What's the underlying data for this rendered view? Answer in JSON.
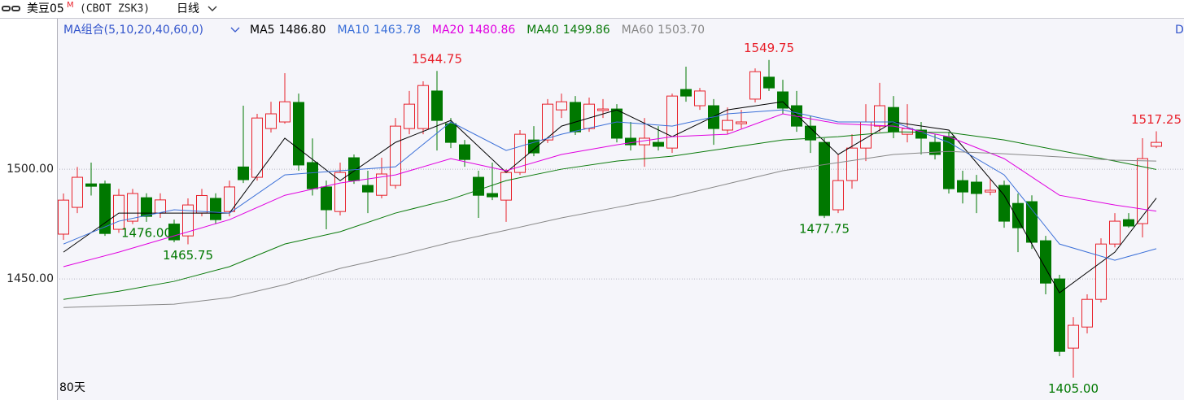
{
  "chart_data": {
    "type": "candlestick",
    "title": "美豆05",
    "title_badge": "M",
    "subtitle": "(CBOT ZSK3)",
    "period": "日线",
    "ma_group_label": "MA组合(5,10,20,40,60,0)",
    "span_label": "80天",
    "corner_label": "D",
    "up_color": "#e8212b",
    "down_color": "#007800",
    "ylim": [
      1395.6,
      1568.9
    ],
    "yticks": [
      {
        "value": 1450,
        "label": "1450.00"
      },
      {
        "value": 1500,
        "label": "1500.00"
      }
    ],
    "grid": true,
    "open": [
      1470.4,
      1482.6,
      1493.3,
      1493.3,
      1472.6,
      1476.3,
      1487,
      1480,
      1475,
      1469.6,
      1480,
      1486.7,
      1480.7,
      1501,
      1496.3,
      1518.5,
      1521.5,
      1530.4,
      1503,
      1491.9,
      1480.7,
      1505.2,
      1492.6,
      1488.1,
      1492.6,
      1518.5,
      1518.5,
      1535.6,
      1520.7,
      1511.1,
      1496.3,
      1488.9,
      1485.9,
      1498.5,
      1513.3,
      1513.3,
      1527,
      1530.4,
      1518.5,
      1526.7,
      1527.4,
      1514.1,
      1511.1,
      1512.2,
      1509.6,
      1536.3,
      1528.9,
      1528.9,
      1517.8,
      1520.7,
      1531.9,
      1541.9,
      1535.2,
      1528.9,
      1519.6,
      1512.2,
      1481.5,
      1494.8,
      1509.6,
      1519.6,
      1528.1,
      1515.9,
      1517.8,
      1512.2,
      1514.8,
      1494.8,
      1494.1,
      1489.6,
      1492.6,
      1484.4,
      1485.2,
      1467.4,
      1450,
      1418.5,
      1428.1,
      1440.7,
      1465.9,
      1477,
      1475.2,
      1510.4
    ],
    "high": [
      1488.9,
      1501,
      1503,
      1494.8,
      1491,
      1491,
      1489,
      1489,
      1477,
      1486.7,
      1491,
      1489,
      1494.8,
      1528.9,
      1525.2,
      1530.7,
      1543.7,
      1534.4,
      1514,
      1494.8,
      1503,
      1506.7,
      1499.3,
      1505.2,
      1523.3,
      1535.6,
      1540,
      1544.75,
      1523.3,
      1513.3,
      1499.3,
      1503,
      1500,
      1517.8,
      1519.6,
      1531.9,
      1534.4,
      1533.3,
      1532.6,
      1531.9,
      1529.6,
      1521.5,
      1523.3,
      1519.6,
      1534.4,
      1546.7,
      1537,
      1531.9,
      1528.1,
      1527,
      1545.9,
      1549.75,
      1540.7,
      1535.6,
      1524.4,
      1514.1,
      1506.7,
      1515.9,
      1529.6,
      1539.3,
      1533.3,
      1529.6,
      1521.5,
      1515.9,
      1517,
      1499.3,
      1497.4,
      1495.6,
      1494.8,
      1488.9,
      1488.1,
      1469.6,
      1451.9,
      1432.6,
      1443,
      1468.5,
      1480,
      1480,
      1514.1,
      1517.25
    ],
    "low": [
      1467.8,
      1480,
      1488,
      1469.6,
      1471,
      1475,
      1476,
      1477.8,
      1466.7,
      1465.75,
      1478.5,
      1475,
      1478.5,
      1493.7,
      1494.8,
      1516.7,
      1520.7,
      1499.3,
      1488,
      1472.6,
      1478.9,
      1493.3,
      1480,
      1486.7,
      1491.1,
      1515.9,
      1515.9,
      1508.5,
      1509.6,
      1501.1,
      1477.8,
      1485.9,
      1476,
      1497.4,
      1505.9,
      1511.9,
      1523.3,
      1515.6,
      1517,
      1523.3,
      1512.2,
      1508.5,
      1501.1,
      1508.5,
      1507.4,
      1530.7,
      1527,
      1511.1,
      1515.9,
      1518.5,
      1530.4,
      1535.6,
      1525.2,
      1517,
      1507.4,
      1477.75,
      1480,
      1491.1,
      1503.7,
      1517,
      1514.1,
      1512.2,
      1506.7,
      1504.4,
      1488.9,
      1484.4,
      1480,
      1488.1,
      1473.3,
      1462.2,
      1463.7,
      1443,
      1414.8,
      1405,
      1425.2,
      1439.3,
      1464.4,
      1473.3,
      1468.9,
      1509.6
    ],
    "close": [
      1485.9,
      1496.3,
      1492.2,
      1470.7,
      1488.1,
      1488.9,
      1478.5,
      1486,
      1467.8,
      1483.7,
      1488,
      1477,
      1491.9,
      1495.2,
      1523.3,
      1525.2,
      1530.7,
      1501.9,
      1491.1,
      1481.5,
      1498.5,
      1494.8,
      1489.6,
      1497.8,
      1519.6,
      1529.6,
      1538.1,
      1522.2,
      1512.2,
      1504.4,
      1488.1,
      1487.4,
      1498.5,
      1515.9,
      1507.4,
      1529.6,
      1530.7,
      1517,
      1529.6,
      1527.4,
      1514.1,
      1511.1,
      1514.1,
      1510.4,
      1533.3,
      1533.3,
      1535.6,
      1518.5,
      1522.2,
      1521.5,
      1544.4,
      1537,
      1527.8,
      1519.6,
      1513.3,
      1478.9,
      1494.8,
      1509.6,
      1521.5,
      1528.9,
      1517,
      1518.5,
      1514.1,
      1506.7,
      1491.1,
      1489.6,
      1488.9,
      1490.4,
      1476.3,
      1473.3,
      1466.7,
      1448.1,
      1417,
      1428.9,
      1440.7,
      1465.9,
      1476.3,
      1474.1,
      1504.8,
      1512.2
    ],
    "high_labels": [
      {
        "value": 1544.75,
        "label": "1544.75"
      },
      {
        "value": 1549.75,
        "label": "1549.75"
      },
      {
        "value": 1517.25,
        "label": "1517.25"
      }
    ],
    "low_labels": [
      {
        "value": 1465.75,
        "label": "1465.75"
      },
      {
        "value": 1476,
        "label": "1476.00"
      },
      {
        "value": 1477.75,
        "label": "1477.75"
      },
      {
        "value": 1405,
        "label": "1405.00"
      }
    ],
    "ma_x": [
      0,
      4,
      8,
      12,
      16,
      20,
      24,
      28,
      32,
      36,
      40,
      44,
      48,
      52,
      56,
      60,
      64,
      68,
      72,
      76,
      79
    ],
    "series": [
      {
        "name": "MA5",
        "color": "#000000",
        "latest": {
          "value": 1486.8,
          "label": "1486.80"
        },
        "values": [
          1462.2,
          1480,
          1480,
          1480,
          1514.1,
          1494.8,
          1512.2,
          1522.2,
          1498.5,
          1519.6,
          1527,
          1514.8,
          1527,
          1530.7,
          1506.7,
          1521.5,
          1517.8,
          1488.1,
          1443.7,
          1462.2,
          1486.8
        ]
      },
      {
        "name": "MA10",
        "color": "#3a6fd8",
        "latest": {
          "value": 1463.78,
          "label": "1463.78"
        },
        "values": [
          1465.9,
          1476.3,
          1481.5,
          1480,
          1497.4,
          1499.3,
          1501.1,
          1521.5,
          1508.5,
          1515.9,
          1521.5,
          1519.6,
          1525.2,
          1527,
          1521.5,
          1521.5,
          1512.2,
          1497.4,
          1465.9,
          1458.5,
          1463.78
        ]
      },
      {
        "name": "MA20",
        "color": "#e000e0",
        "latest": {
          "value": 1480.86,
          "label": "1480.86"
        },
        "values": [
          1455.6,
          1462.2,
          1469.6,
          1477,
          1488.1,
          1493.7,
          1497.4,
          1504.8,
          1499.3,
          1506.7,
          1511.1,
          1514.8,
          1515.9,
          1525.2,
          1520.7,
          1519.6,
          1514.8,
          1504.8,
          1488.1,
          1483.7,
          1480.86
        ]
      },
      {
        "name": "MA40",
        "color": "#0a7a0a",
        "latest": {
          "value": 1499.86,
          "label": "1499.86"
        },
        "values": [
          1440.7,
          1444.4,
          1448.9,
          1455.6,
          1465.9,
          1471.5,
          1480,
          1486.3,
          1494.8,
          1500,
          1503.7,
          1505.9,
          1509.6,
          1513.3,
          1514.8,
          1517,
          1516.7,
          1513.3,
          1508.5,
          1503.7,
          1499.86
        ]
      },
      {
        "name": "MA60",
        "color": "#888888",
        "latest": {
          "value": 1503.7,
          "label": "1503.70"
        },
        "values": [
          1437,
          1437.8,
          1438.5,
          1441.5,
          1447.4,
          1454.8,
          1460.4,
          1466.7,
          1472.2,
          1477.8,
          1482.6,
          1487.4,
          1493.3,
          1499.3,
          1503,
          1506.7,
          1508.1,
          1507,
          1505.6,
          1504.1,
          1503.7
        ]
      }
    ]
  }
}
